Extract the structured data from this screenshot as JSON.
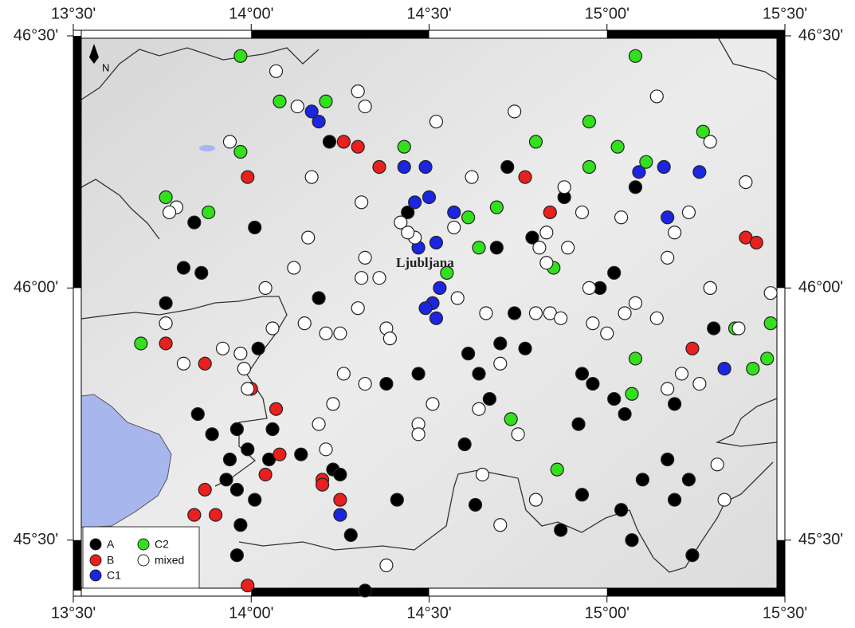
{
  "chart_data": {
    "type": "scatter",
    "annotation": "Ljubljana",
    "north_label": "N",
    "xlim": [
      13.5,
      15.5
    ],
    "ylim": [
      45.4,
      46.5
    ],
    "xticks": [
      {
        "value": 13.5,
        "label": "13°30'"
      },
      {
        "value": 14,
        "label": "14°00'"
      },
      {
        "value": 14.5,
        "label": "14°30'"
      },
      {
        "value": 15,
        "label": "15°00'"
      },
      {
        "value": 15.5,
        "label": "15°30'"
      }
    ],
    "yticks": [
      {
        "value": 45.5,
        "label": "45°30'"
      },
      {
        "value": 46,
        "label": "46°00'"
      },
      {
        "value": 46.5,
        "label": "46°30'"
      }
    ],
    "series": [
      {
        "name": "A",
        "color": "#000000",
        "x": [
          14.22,
          14.72,
          15.08,
          14.88,
          14.44,
          14.01,
          13.84,
          13.81,
          13.86,
          14.79,
          14.69,
          15.02,
          14.98,
          14.19,
          13.76,
          14.02,
          14.61,
          14.7,
          14.77,
          14.74,
          15.3,
          14.47,
          14.64,
          14.38,
          14.93,
          14.96,
          15.02,
          15.19,
          14.67,
          15.05,
          13.85,
          13.96,
          14.06,
          13.89,
          13.99,
          13.94,
          14.05,
          14.14,
          13.93,
          13.96,
          14.01,
          14.23,
          14.25,
          14.6,
          14.92,
          15.17,
          15.1,
          15.23,
          14.93,
          15.19,
          15.04,
          14.41,
          14.63,
          13.97,
          14.28,
          14.87,
          15.07,
          15.24,
          13.96,
          14.32
        ],
        "values": [
          46.29,
          46.24,
          46.2,
          46.18,
          46.15,
          46.12,
          46.13,
          46.04,
          46.03,
          46.1,
          46.08,
          46.03,
          46.0,
          45.98,
          45.97,
          45.88,
          45.87,
          45.89,
          45.88,
          45.95,
          45.92,
          45.83,
          45.83,
          45.81,
          45.83,
          45.81,
          45.78,
          45.77,
          45.78,
          45.75,
          45.75,
          45.72,
          45.72,
          45.71,
          45.68,
          45.66,
          45.66,
          45.67,
          45.62,
          45.6,
          45.58,
          45.64,
          45.63,
          45.69,
          45.73,
          45.66,
          45.62,
          45.62,
          45.59,
          45.58,
          45.56,
          45.58,
          45.57,
          45.53,
          45.51,
          45.52,
          45.5,
          45.47,
          45.47,
          45.4
        ]
      },
      {
        "name": "B",
        "color": "#e8201e",
        "x": [
          14.26,
          14.3,
          14.36,
          14.77,
          13.99,
          14.84,
          15.39,
          15.42,
          13.76,
          13.87,
          14.0,
          14.07,
          14.08,
          14.04,
          14.2,
          14.2,
          14.25,
          13.87,
          13.84,
          13.9,
          15.24,
          13.99
        ],
        "values": [
          46.29,
          46.28,
          46.24,
          46.22,
          46.22,
          46.15,
          46.1,
          46.09,
          45.89,
          45.85,
          45.8,
          45.76,
          45.67,
          45.63,
          45.62,
          45.61,
          45.58,
          45.6,
          45.55,
          45.55,
          45.88,
          45.41
        ]
      },
      {
        "name": "C1",
        "color": "#1c25e0",
        "x": [
          14.17,
          14.19,
          14.43,
          14.49,
          14.46,
          14.5,
          14.57,
          15.09,
          15.16,
          15.26,
          15.17,
          14.47,
          14.52,
          14.53,
          14.51,
          14.49,
          14.52,
          15.33,
          14.25
        ],
        "values": [
          46.35,
          46.33,
          46.24,
          46.24,
          46.17,
          46.18,
          46.15,
          46.23,
          46.24,
          46.23,
          46.14,
          46.08,
          46.09,
          46.0,
          45.97,
          45.96,
          45.94,
          45.84,
          45.55
        ]
      },
      {
        "name": "C2",
        "color": "#33e01c",
        "x": [
          13.97,
          15.08,
          14.08,
          14.21,
          15.27,
          14.95,
          14.43,
          14.8,
          13.97,
          15.03,
          15.11,
          14.95,
          13.76,
          13.88,
          14.69,
          14.61,
          14.64,
          14.55,
          14.85,
          13.69,
          15.08,
          15.46,
          15.45,
          15.41,
          15.07,
          14.73,
          14.86,
          15.36,
          15.29
        ],
        "values": [
          46.46,
          46.46,
          46.37,
          46.37,
          46.31,
          46.33,
          46.28,
          46.29,
          46.27,
          46.28,
          46.25,
          46.24,
          46.18,
          46.15,
          46.16,
          46.14,
          46.08,
          46.03,
          46.04,
          45.89,
          45.86,
          45.93,
          45.86,
          45.84,
          45.79,
          45.74,
          45.64,
          45.92,
          46.0
        ]
      },
      {
        "name": "mixed",
        "color": "#ffffff",
        "x": [
          14.07,
          14.3,
          14.13,
          14.32,
          15.14,
          14.74,
          14.52,
          13.94,
          15.29,
          14.62,
          15.39,
          14.88,
          14.17,
          13.79,
          13.77,
          14.31,
          14.42,
          14.57,
          14.93,
          15.04,
          15.23,
          15.19,
          14.83,
          14.16,
          14.46,
          14.44,
          14.89,
          14.81,
          15.17,
          14.32,
          14.12,
          14.83,
          14.31,
          14.36,
          14.04,
          14.95,
          15.29,
          15.46,
          14.58,
          14.3,
          14.66,
          14.8,
          14.84,
          14.87,
          15.08,
          15.05,
          15.14,
          14.15,
          14.06,
          14.25,
          14.21,
          14.38,
          14.39,
          14.96,
          15.0,
          15.37,
          13.76,
          13.92,
          13.97,
          13.98,
          13.81,
          14.26,
          14.32,
          14.7,
          15.21,
          15.26,
          15.17,
          13.99,
          14.23,
          14.51,
          14.64,
          14.19,
          14.47,
          14.47,
          14.75,
          14.21,
          14.65,
          15.31,
          14.8,
          14.7,
          15.33,
          14.38
        ],
        "values": [
          46.43,
          46.39,
          46.36,
          46.36,
          46.38,
          46.35,
          46.33,
          46.29,
          46.29,
          46.22,
          46.21,
          46.2,
          46.22,
          46.16,
          46.15,
          46.17,
          46.13,
          46.12,
          46.15,
          46.14,
          46.15,
          46.11,
          46.11,
          46.1,
          46.1,
          46.11,
          46.08,
          46.08,
          46.06,
          46.06,
          46.04,
          46.05,
          46.02,
          46.02,
          46.0,
          46.0,
          46.0,
          45.99,
          45.98,
          45.96,
          45.95,
          45.95,
          45.95,
          45.94,
          45.97,
          45.95,
          45.94,
          45.93,
          45.92,
          45.91,
          45.91,
          45.92,
          45.9,
          45.93,
          45.91,
          45.92,
          45.93,
          45.88,
          45.87,
          45.84,
          45.85,
          45.83,
          45.81,
          45.85,
          45.83,
          45.81,
          45.8,
          45.8,
          45.77,
          45.77,
          45.76,
          45.73,
          45.73,
          45.71,
          45.71,
          45.68,
          45.63,
          45.65,
          45.58,
          45.53,
          45.58,
          45.45
        ]
      }
    ]
  }
}
